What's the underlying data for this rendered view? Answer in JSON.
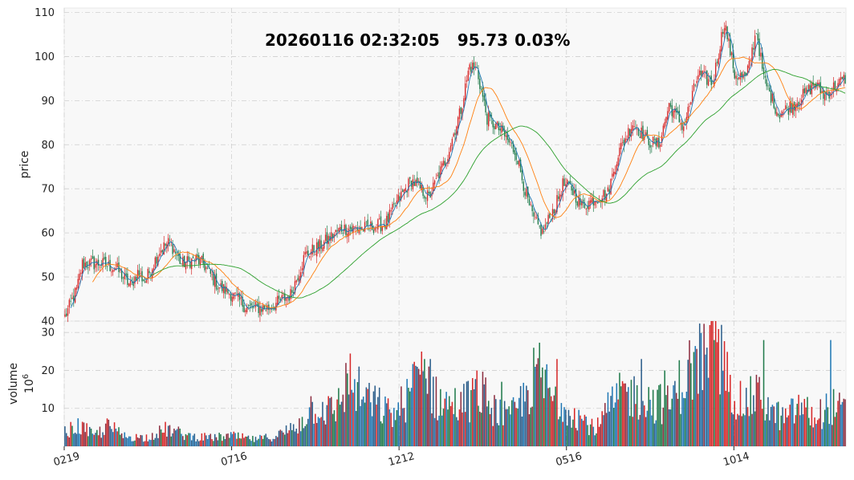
{
  "title": {
    "datetime": "20260116 02:32:05",
    "price": "95.73",
    "change": "0.03%"
  },
  "chart_data": [
    {
      "type": "candlestick",
      "ylabel": "price",
      "ylim": [
        40,
        111
      ],
      "yticks": [
        40,
        50,
        60,
        70,
        80,
        90,
        100,
        110
      ],
      "grid": true,
      "colors": {
        "up": "#d62728",
        "down": "#1f7a4a",
        "ma_short": "#1f77b4",
        "ma_mid": "#ff7f0e",
        "ma_long": "#2ca02c"
      },
      "anchors": [
        [
          0,
          41
        ],
        [
          8,
          47
        ],
        [
          12,
          53
        ],
        [
          25,
          53
        ],
        [
          35,
          52
        ],
        [
          45,
          48
        ],
        [
          50,
          51
        ],
        [
          55,
          49
        ],
        [
          65,
          56
        ],
        [
          72,
          58
        ],
        [
          80,
          53
        ],
        [
          90,
          54
        ],
        [
          95,
          53
        ],
        [
          105,
          48
        ],
        [
          115,
          46
        ],
        [
          125,
          43
        ],
        [
          140,
          43
        ],
        [
          155,
          46
        ],
        [
          165,
          55
        ],
        [
          175,
          57
        ],
        [
          190,
          61
        ],
        [
          205,
          61
        ],
        [
          220,
          62
        ],
        [
          230,
          68
        ],
        [
          238,
          72
        ],
        [
          250,
          68
        ],
        [
          262,
          77
        ],
        [
          272,
          88
        ],
        [
          278,
          98
        ],
        [
          283,
          97
        ],
        [
          290,
          86
        ],
        [
          300,
          83
        ],
        [
          310,
          78
        ],
        [
          318,
          67
        ],
        [
          322,
          63
        ],
        [
          328,
          60
        ],
        [
          338,
          67
        ],
        [
          342,
          71
        ],
        [
          348,
          70
        ],
        [
          355,
          66
        ],
        [
          365,
          68
        ],
        [
          373,
          69
        ],
        [
          380,
          78
        ],
        [
          390,
          85
        ],
        [
          400,
          81
        ],
        [
          408,
          80
        ],
        [
          415,
          89
        ],
        [
          425,
          84
        ],
        [
          435,
          96
        ],
        [
          445,
          94
        ],
        [
          453,
          108
        ],
        [
          460,
          96
        ],
        [
          468,
          95
        ],
        [
          475,
          106
        ],
        [
          480,
          95
        ],
        [
          490,
          87
        ],
        [
          500,
          89
        ],
        [
          510,
          92
        ],
        [
          515,
          94
        ],
        [
          522,
          91
        ],
        [
          528,
          93
        ],
        [
          536,
          95
        ]
      ],
      "ma": [
        {
          "name": "MA short",
          "color": "#1f77b4"
        },
        {
          "name": "MA mid",
          "color": "#ff7f0e"
        },
        {
          "name": "MA long",
          "color": "#2ca02c"
        }
      ]
    },
    {
      "type": "bar",
      "ylabel": "volume",
      "ylabel_unit": "10",
      "ylabel_unit_exp": "6",
      "ylim": [
        0,
        33
      ],
      "yticks": [
        10,
        20,
        30
      ],
      "grid": true,
      "x_ticks": [
        "0219",
        "0716",
        "1212",
        "0516",
        "1014"
      ],
      "x_tick_index": [
        0,
        115,
        230,
        345,
        460
      ],
      "colors": [
        "#d62728",
        "#1f77b4",
        "#1f7a4a",
        "#8c2d3f",
        "#2b5d8a"
      ],
      "anchors": [
        [
          0,
          4
        ],
        [
          10,
          6
        ],
        [
          20,
          3
        ],
        [
          30,
          6
        ],
        [
          40,
          3
        ],
        [
          55,
          2.5
        ],
        [
          70,
          5
        ],
        [
          85,
          3
        ],
        [
          100,
          2.5
        ],
        [
          115,
          3
        ],
        [
          130,
          2
        ],
        [
          145,
          3
        ],
        [
          160,
          6
        ],
        [
          170,
          12
        ],
        [
          185,
          10
        ],
        [
          195,
          20
        ],
        [
          205,
          14
        ],
        [
          215,
          12
        ],
        [
          225,
          9
        ],
        [
          235,
          14
        ],
        [
          245,
          23
        ],
        [
          255,
          14
        ],
        [
          265,
          12
        ],
        [
          275,
          13
        ],
        [
          285,
          16
        ],
        [
          295,
          11
        ],
        [
          305,
          8
        ],
        [
          315,
          14
        ],
        [
          325,
          22
        ],
        [
          335,
          14
        ],
        [
          345,
          12
        ],
        [
          355,
          8
        ],
        [
          365,
          5
        ],
        [
          375,
          12
        ],
        [
          385,
          16
        ],
        [
          395,
          14
        ],
        [
          405,
          13
        ],
        [
          415,
          12
        ],
        [
          425,
          20
        ],
        [
          435,
          25
        ],
        [
          445,
          29
        ],
        [
          455,
          20
        ],
        [
          465,
          12
        ],
        [
          475,
          15
        ],
        [
          485,
          10
        ],
        [
          495,
          8
        ],
        [
          505,
          12
        ],
        [
          515,
          8
        ],
        [
          525,
          12
        ],
        [
          536,
          10
        ]
      ],
      "peaks": [
        [
          247,
          23
        ],
        [
          251,
          23
        ],
        [
          283,
          20
        ],
        [
          300,
          17
        ],
        [
          338,
          23
        ],
        [
          396,
          23
        ],
        [
          412,
          20
        ],
        [
          441,
          26
        ],
        [
          446,
          28
        ],
        [
          451,
          32
        ],
        [
          480,
          28
        ],
        [
          526,
          28
        ]
      ]
    }
  ]
}
